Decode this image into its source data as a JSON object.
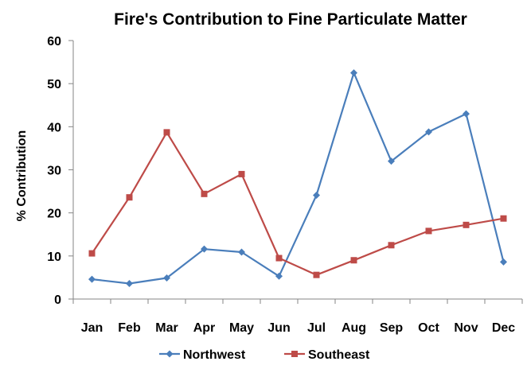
{
  "chart_data": {
    "type": "line",
    "title": "Fire's Contribution to Fine Particulate Matter",
    "xlabel": "",
    "ylabel": "% Contribution",
    "categories": [
      "Jan",
      "Feb",
      "Mar",
      "Apr",
      "May",
      "Jun",
      "Jul",
      "Aug",
      "Sep",
      "Oct",
      "Nov",
      "Dec"
    ],
    "ylim": [
      0,
      60
    ],
    "yticks": [
      "0",
      "10",
      "20",
      "30",
      "40",
      "50",
      "60"
    ],
    "grid": false,
    "legend_position": "bottom",
    "series": [
      {
        "name": "Northwest",
        "color": "#4a7ebb",
        "marker": "diamond",
        "values": [
          4.6,
          3.6,
          4.9,
          11.6,
          10.9,
          5.3,
          24.1,
          52.5,
          32.0,
          38.8,
          43.0,
          8.6
        ]
      },
      {
        "name": "Southeast",
        "color": "#be4b48",
        "marker": "square",
        "values": [
          10.6,
          23.6,
          38.7,
          24.4,
          29.0,
          9.5,
          5.6,
          9.0,
          12.5,
          15.8,
          17.2,
          18.7
        ]
      }
    ]
  }
}
